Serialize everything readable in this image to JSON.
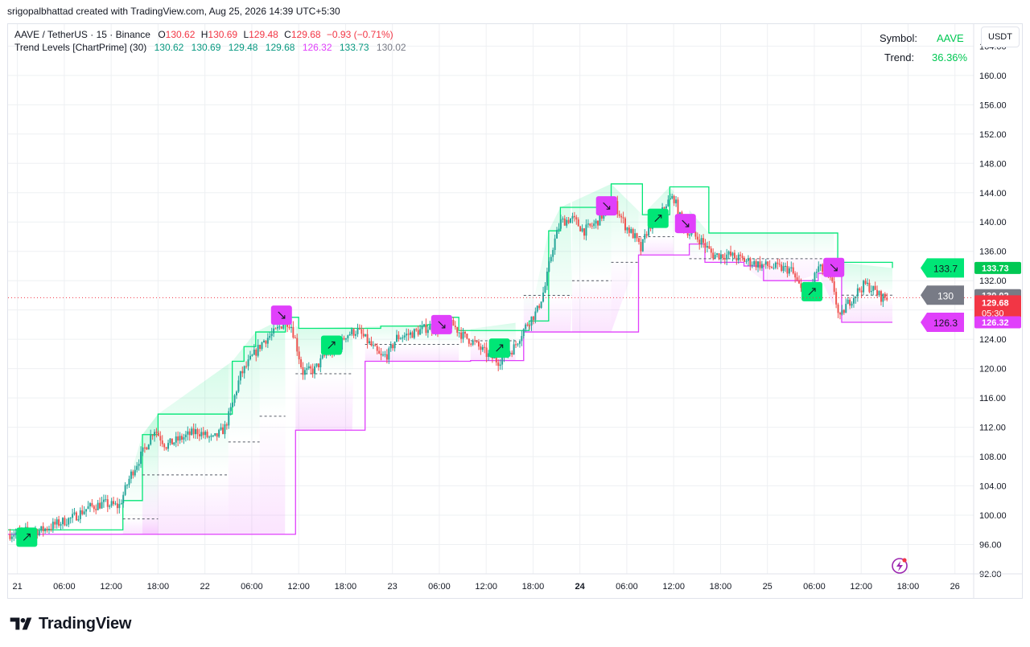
{
  "header": {
    "attribution": "srigopalbhattad created with TradingView.com, Aug 25, 2026 14:39 UTC+5:30"
  },
  "legend": {
    "symbol": "AAVE / TetherUS · 15 · Binance",
    "o_label": "O",
    "o_value": "130.62",
    "h_label": "H",
    "h_value": "130.69",
    "l_label": "L",
    "l_value": "129.48",
    "c_label": "C",
    "c_value": "129.68",
    "change": "−0.93 (−0.71%)",
    "indicator_name": "Trend Levels [ChartPrime] (30)",
    "indicator_values": [
      "130.62",
      "130.69",
      "129.48",
      "129.68",
      "126.32",
      "133.73",
      "130.02"
    ]
  },
  "info_table": {
    "symbol_label": "Symbol:",
    "symbol_value": "AAVE",
    "trend_label": "Trend:",
    "trend_value": "36.36%"
  },
  "currency": "USDT",
  "brand": {
    "name": "TradingView",
    "logo_icon": "tradingview-logo-icon"
  },
  "colors": {
    "up": "#26a69a",
    "down": "#ef5350",
    "green_signal": "#00e676",
    "magenta_signal": "#e040fb",
    "mid_grey": "#787b86",
    "text": "#131722",
    "grid": "#eef0f3",
    "legend_red": "#f23645",
    "legend_green": "#089981"
  },
  "chart_data": {
    "type": "candlestick",
    "symbol": "AAVE / TetherUS",
    "interval": "15",
    "ylim": [
      92,
      167
    ],
    "y_ticks": [
      "92.00",
      "96.00",
      "100.00",
      "104.00",
      "108.00",
      "112.00",
      "116.00",
      "120.00",
      "124.00",
      "128.00",
      "132.00",
      "136.00",
      "140.00",
      "144.00",
      "148.00",
      "152.00",
      "156.00",
      "160.00",
      "164.00"
    ],
    "x_ticks": [
      {
        "label": "21",
        "h": 0,
        "bold": false
      },
      {
        "label": "06:00",
        "h": 6,
        "bold": false
      },
      {
        "label": "12:00",
        "h": 12,
        "bold": false
      },
      {
        "label": "18:00",
        "h": 18,
        "bold": false
      },
      {
        "label": "22",
        "h": 24,
        "bold": false
      },
      {
        "label": "06:00",
        "h": 30,
        "bold": false
      },
      {
        "label": "12:00",
        "h": 36,
        "bold": false
      },
      {
        "label": "18:00",
        "h": 42,
        "bold": false
      },
      {
        "label": "23",
        "h": 48,
        "bold": false
      },
      {
        "label": "06:00",
        "h": 54,
        "bold": false
      },
      {
        "label": "12:00",
        "h": 60,
        "bold": false
      },
      {
        "label": "18:00",
        "h": 66,
        "bold": false
      },
      {
        "label": "24",
        "h": 72,
        "bold": true
      },
      {
        "label": "06:00",
        "h": 78,
        "bold": false
      },
      {
        "label": "12:00",
        "h": 84,
        "bold": false
      },
      {
        "label": "18:00",
        "h": 90,
        "bold": false
      },
      {
        "label": "25",
        "h": 96,
        "bold": false
      },
      {
        "label": "06:00",
        "h": 102,
        "bold": false
      },
      {
        "label": "12:00",
        "h": 108,
        "bold": false
      },
      {
        "label": "18:00",
        "h": 114,
        "bold": false
      },
      {
        "label": "26",
        "h": 120,
        "bold": false
      }
    ],
    "x_range_hours": [
      -1.2,
      122.4
    ],
    "price_path": [
      [
        -1.2,
        97.4
      ],
      [
        1,
        97.8
      ],
      [
        3,
        97.9
      ],
      [
        5,
        98.8
      ],
      [
        7,
        99.6
      ],
      [
        9,
        101.0
      ],
      [
        11,
        101.6
      ],
      [
        13,
        101.2
      ],
      [
        14.5,
        105.5
      ],
      [
        15.5,
        107.5
      ],
      [
        16.5,
        109.5
      ],
      [
        17.5,
        111.8
      ],
      [
        19,
        109.5
      ],
      [
        21,
        110.5
      ],
      [
        23,
        111.5
      ],
      [
        25,
        110.3
      ],
      [
        26.5,
        111.8
      ],
      [
        27.5,
        115.0
      ],
      [
        28.5,
        119.0
      ],
      [
        30,
        121.5
      ],
      [
        31.5,
        123.8
      ],
      [
        33,
        125.0
      ],
      [
        34.3,
        126.6
      ],
      [
        35,
        126.0
      ],
      [
        35.5,
        124.2
      ],
      [
        36.5,
        119.5
      ],
      [
        38,
        119.8
      ],
      [
        39.5,
        122.0
      ],
      [
        41,
        122.5
      ],
      [
        42,
        124.6
      ],
      [
        43.5,
        125.2
      ],
      [
        45,
        123.5
      ],
      [
        46.5,
        121.5
      ],
      [
        47.5,
        122.0
      ],
      [
        48.5,
        124.2
      ],
      [
        50.5,
        124.8
      ],
      [
        52.5,
        125.6
      ],
      [
        54.5,
        125.6
      ],
      [
        55.7,
        126.0
      ],
      [
        57,
        124.5
      ],
      [
        58.5,
        123.5
      ],
      [
        60,
        122.0
      ],
      [
        61.5,
        121.0
      ],
      [
        62.5,
        121.8
      ],
      [
        63.5,
        122.8
      ],
      [
        64.5,
        124.8
      ],
      [
        65.5,
        126.5
      ],
      [
        66.5,
        127.8
      ],
      [
        67.5,
        131.0
      ],
      [
        68.5,
        136.5
      ],
      [
        69.5,
        140.0
      ],
      [
        71,
        140.5
      ],
      [
        72.5,
        138.8
      ],
      [
        74,
        139.8
      ],
      [
        75.5,
        141.8
      ],
      [
        76.5,
        142.4
      ],
      [
        77.8,
        139.5
      ],
      [
        79,
        138.0
      ],
      [
        79.8,
        136.2
      ],
      [
        80.8,
        139.5
      ],
      [
        82,
        140.2
      ],
      [
        83,
        142.5
      ],
      [
        84,
        143.4
      ],
      [
        85,
        140.0
      ],
      [
        86,
        138.5
      ],
      [
        87.5,
        137.5
      ],
      [
        89,
        135.5
      ],
      [
        91,
        135.5
      ],
      [
        93,
        134.8
      ],
      [
        95,
        134.2
      ],
      [
        97,
        133.8
      ],
      [
        99,
        133.5
      ],
      [
        100.5,
        130.3
      ],
      [
        101.5,
        131.2
      ],
      [
        102.5,
        133.8
      ],
      [
        103.5,
        133.0
      ],
      [
        104.5,
        131.0
      ],
      [
        105.2,
        126.5
      ],
      [
        106,
        128.5
      ],
      [
        107.5,
        130.5
      ],
      [
        108.5,
        131.5
      ],
      [
        109.5,
        130.8
      ],
      [
        110.5,
        129.8
      ],
      [
        111.3,
        129.68
      ]
    ],
    "upper_level": [
      [
        -1.2,
        98.0
      ],
      [
        13.5,
        102.0
      ],
      [
        16,
        111.0
      ],
      [
        18.0,
        113.8
      ],
      [
        27.5,
        121.0
      ],
      [
        29,
        123.0
      ],
      [
        30.5,
        125.0
      ],
      [
        34.3,
        127.0
      ],
      [
        36,
        125.5
      ],
      [
        46.5,
        125.8
      ],
      [
        52.5,
        126.0
      ],
      [
        54.3,
        127.0
      ],
      [
        56.5,
        125.2
      ],
      [
        65.5,
        126.5
      ],
      [
        68,
        138.8
      ],
      [
        69.5,
        142.0
      ],
      [
        76.0,
        145.2
      ],
      [
        80,
        141.0
      ],
      [
        83.5,
        144.8
      ],
      [
        88.5,
        138.5
      ],
      [
        104.5,
        138.5
      ],
      [
        105,
        134.5
      ],
      [
        112,
        133.73
      ]
    ],
    "lower_level": [
      [
        -1.2,
        97.4
      ],
      [
        34.3,
        97.4
      ],
      [
        35.6,
        111.6
      ],
      [
        43.0,
        111.6
      ],
      [
        44.5,
        121.0
      ],
      [
        56.5,
        121.0
      ],
      [
        58.0,
        121.1
      ],
      [
        63.8,
        121.1
      ],
      [
        64.8,
        125.0
      ],
      [
        76.0,
        125.0
      ],
      [
        79.5,
        135.5
      ],
      [
        84.0,
        135.5
      ],
      [
        86.0,
        137.0
      ],
      [
        88.0,
        134.5
      ],
      [
        93.0,
        134.0
      ],
      [
        95.5,
        132.0
      ],
      [
        100.0,
        132.0
      ],
      [
        102.5,
        133.0
      ],
      [
        105.5,
        126.32
      ],
      [
        112,
        126.32
      ]
    ],
    "mid_level_segments": [
      [
        13.5,
        18.0,
        99.5
      ],
      [
        16.0,
        27.0,
        105.5
      ],
      [
        27.0,
        31.0,
        110.0
      ],
      [
        31.0,
        34.3,
        113.5
      ],
      [
        35.6,
        43.0,
        119.3
      ],
      [
        44.5,
        56.5,
        123.3
      ],
      [
        58.0,
        63.8,
        123.8
      ],
      [
        64.8,
        71.0,
        130.0
      ],
      [
        71.0,
        76.0,
        132.0
      ],
      [
        76.0,
        79.5,
        134.5
      ],
      [
        79.5,
        84.0,
        138.0
      ],
      [
        86.0,
        104.5,
        135.0
      ],
      [
        105.5,
        112.0,
        130.02
      ]
    ],
    "signals": [
      {
        "type": "up",
        "h": 1.2,
        "price": 97.0
      },
      {
        "type": "down",
        "h": 33.8,
        "price": 127.3
      },
      {
        "type": "up",
        "h": 40.2,
        "price": 123.2
      },
      {
        "type": "down",
        "h": 54.3,
        "price": 126.0
      },
      {
        "type": "up",
        "h": 61.7,
        "price": 122.8
      },
      {
        "type": "down",
        "h": 75.4,
        "price": 142.2
      },
      {
        "type": "up",
        "h": 82.0,
        "price": 140.5
      },
      {
        "type": "down",
        "h": 85.5,
        "price": 139.8
      },
      {
        "type": "up",
        "h": 101.7,
        "price": 130.5
      },
      {
        "type": "down",
        "h": 104.5,
        "price": 133.8
      }
    ],
    "level_labels": [
      {
        "text": "133.7",
        "price": 133.73,
        "kind": "upper"
      },
      {
        "text": "130",
        "price": 130.02,
        "kind": "mid"
      },
      {
        "text": "126.3",
        "price": 126.32,
        "kind": "lower"
      }
    ],
    "price_axis_labels": [
      {
        "text": "133.73",
        "price": 133.73,
        "kind": "upper"
      },
      {
        "text": "130.02",
        "price": 130.02,
        "kind": "mid"
      },
      {
        "text": "129.68",
        "price": 129.68,
        "kind": "upper"
      },
      {
        "text": "129.68",
        "price": 129.68,
        "kind": "last"
      },
      {
        "text": "126.32",
        "price": 126.32,
        "kind": "lower"
      }
    ],
    "last_price": {
      "value": 129.68,
      "countdown": "05:30"
    }
  }
}
